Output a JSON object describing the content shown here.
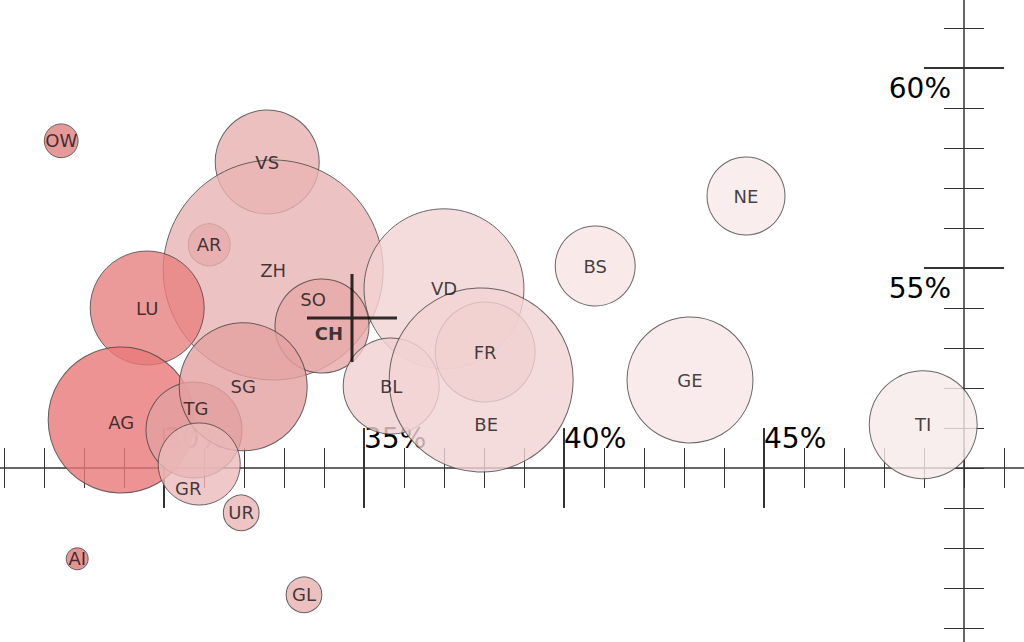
{
  "chart_data": {
    "type": "bubble",
    "xlim": [
      25.9,
      51.5
    ],
    "ylim": [
      45.65,
      61.7
    ],
    "xticks": [
      {
        "value": 30,
        "label": "30%"
      },
      {
        "value": 35,
        "label": "35%"
      },
      {
        "value": 40,
        "label": "40%"
      },
      {
        "value": 45,
        "label": "45%"
      }
    ],
    "yticks": [
      {
        "value": 55,
        "label": "55%"
      },
      {
        "value": 60,
        "label": "60%"
      }
    ],
    "origin": {
      "x": 50,
      "y": 50
    },
    "grid": false,
    "points": [
      {
        "label": "OW",
        "x": 27.43,
        "y": 58.18,
        "size": 33,
        "color": "#e07f7f"
      },
      {
        "label": "VS",
        "x": 32.58,
        "y": 57.65,
        "size": 313,
        "color": "#e8b0b0"
      },
      {
        "label": "AR",
        "x": 31.13,
        "y": 55.58,
        "size": 51,
        "color": "#dd9090"
      },
      {
        "label": "ZH",
        "x": 32.73,
        "y": 54.95,
        "size": 1400,
        "color": "#e8b3b3"
      },
      {
        "label": "LU",
        "x": 29.58,
        "y": 54.0,
        "size": 376,
        "color": "#e77f7f"
      },
      {
        "label": "SO",
        "x": 33.95,
        "y": 53.55,
        "size": 256,
        "color": "#e6a8a8"
      },
      {
        "label": "VD",
        "x": 37.0,
        "y": 54.48,
        "size": 740,
        "color": "#f2d3d3"
      },
      {
        "label": "BS",
        "x": 40.78,
        "y": 55.05,
        "size": 185,
        "color": "#f7e3e3"
      },
      {
        "label": "NE",
        "x": 44.55,
        "y": 56.8,
        "size": 176,
        "color": "#f8e8e8"
      },
      {
        "label": "FR",
        "x": 38.03,
        "y": 52.9,
        "size": 289,
        "color": "#ecc3c3"
      },
      {
        "label": "BL",
        "x": 35.68,
        "y": 52.05,
        "size": 267,
        "color": "#f0d0d0"
      },
      {
        "label": "BE",
        "x": 37.93,
        "y": 52.2,
        "size": 979,
        "color": "#f2d3d3"
      },
      {
        "label": "GE",
        "x": 43.15,
        "y": 52.2,
        "size": 459,
        "color": "#f8e6e6"
      },
      {
        "label": "TI",
        "x": 48.98,
        "y": 51.08,
        "size": 337,
        "color": "#f8eaea"
      },
      {
        "label": "AG",
        "x": 28.93,
        "y": 51.2,
        "size": 617,
        "color": "#e87878"
      },
      {
        "label": "TG",
        "x": 30.75,
        "y": 50.95,
        "size": 267,
        "color": "#e3a0a0"
      },
      {
        "label": "SG",
        "x": 31.98,
        "y": 52.03,
        "size": 474,
        "color": "#e4a0a0"
      },
      {
        "label": "GR",
        "x": 30.88,
        "y": 50.1,
        "size": 195,
        "color": "#ebbcbc"
      },
      {
        "label": "UR",
        "x": 31.93,
        "y": 48.88,
        "size": 37,
        "color": "#ebb5b5"
      },
      {
        "label": "AI",
        "x": 27.83,
        "y": 47.73,
        "size": 14,
        "color": "#e07878"
      },
      {
        "label": "GL",
        "x": 33.5,
        "y": 46.83,
        "size": 37,
        "color": "#e8b0b0"
      }
    ],
    "reference": {
      "label": "CH",
      "x": 34.7,
      "y": 53.75,
      "marker": "cross"
    }
  }
}
